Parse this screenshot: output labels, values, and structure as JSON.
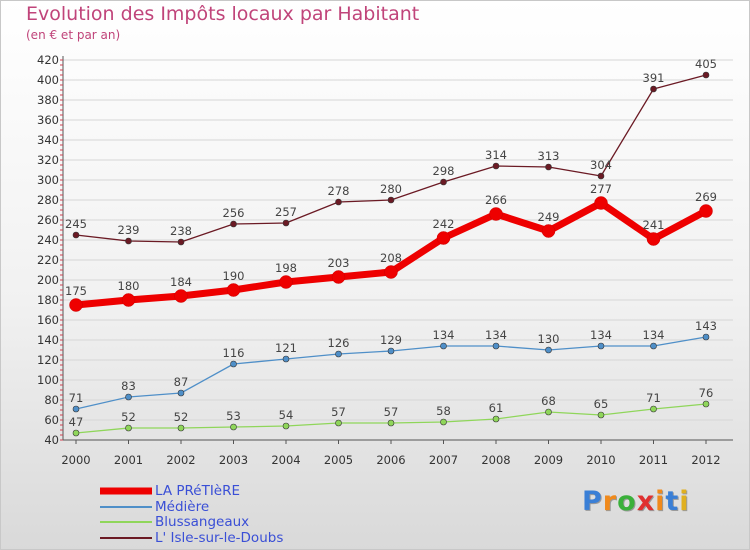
{
  "header": {
    "title": "Evolution des Impôts locaux par Habitant",
    "subtitle": "(en € et par an)"
  },
  "logo": {
    "letters": [
      "P",
      "r",
      "o",
      "x",
      "i",
      "t",
      "i"
    ],
    "colors": [
      "#3a7fd6",
      "#f08a1c",
      "#3ab03a",
      "#e03030",
      "#f08a1c",
      "#3a7fd6",
      "#e0b020"
    ]
  },
  "chart_data": {
    "type": "line",
    "x": [
      "2000",
      "2001",
      "2002",
      "2003",
      "2004",
      "2005",
      "2006",
      "2007",
      "2008",
      "2009",
      "2010",
      "2011",
      "2012"
    ],
    "ylim": [
      40,
      420
    ],
    "yticks": [
      40,
      60,
      80,
      100,
      120,
      140,
      160,
      180,
      200,
      220,
      240,
      260,
      280,
      300,
      320,
      340,
      360,
      380,
      400,
      420
    ],
    "grid": "horizontal",
    "legend_position": "bottom-left",
    "series": [
      {
        "name": "LA PRéTIèRE",
        "values": [
          175,
          180,
          184,
          190,
          198,
          203,
          208,
          242,
          266,
          249,
          277,
          241,
          269
        ],
        "color": "#ee0000",
        "style": "bold"
      },
      {
        "name": "Médière",
        "values": [
          71,
          83,
          87,
          116,
          121,
          126,
          129,
          134,
          134,
          130,
          134,
          134,
          143
        ],
        "color": "#4f8fc8",
        "style": "normal"
      },
      {
        "name": "Blussangeaux",
        "values": [
          47,
          52,
          52,
          53,
          54,
          57,
          57,
          58,
          61,
          68,
          65,
          71,
          76
        ],
        "color": "#8fd65a",
        "style": "normal"
      },
      {
        "name": "L' Isle-sur-le-Doubs",
        "values": [
          245,
          239,
          238,
          256,
          257,
          278,
          280,
          298,
          314,
          313,
          304,
          391,
          405
        ],
        "color": "#6b1a24",
        "style": "normal"
      }
    ]
  }
}
